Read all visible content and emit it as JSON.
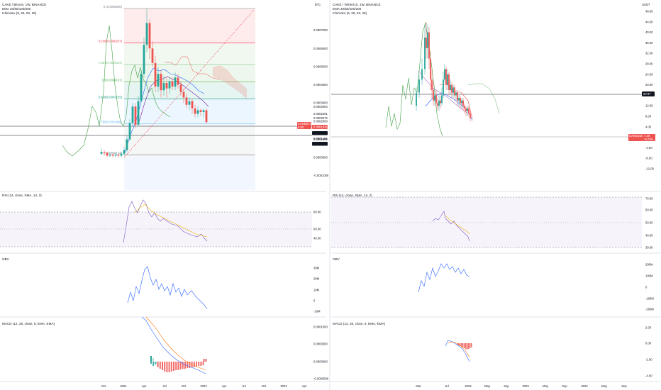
{
  "colors": {
    "up": "#26a69a",
    "down": "#ef5350",
    "ema": "#2962ff",
    "rsi_line": "#7e57c2",
    "rsi_ma": "#f0b400",
    "obv": "#2962ff",
    "macd": "#2962ff",
    "signal": "#ff6d00",
    "ichimoku_lag": "#43a047",
    "grid": "#e0e3eb"
  },
  "left": {
    "title": "CAKE / Bitcoin, 1W, BINANCE",
    "line2": "EMA 20/50/100/200",
    "line3": "Ichimoku (9, 26, 52, 26)",
    "currency": "BTC",
    "price_ticks": [
      "0.0007000",
      "0.0006000",
      "0.0005000",
      "0.0004000",
      "0.0003000",
      "0.0002000",
      "0.0001000",
      "0.0000000",
      "-0.0001000"
    ],
    "price_tick_values": [
      0.0007,
      0.0006,
      0.0005,
      0.0004,
      0.0003,
      0.0002,
      0.0001,
      0.0,
      -0.0001
    ],
    "fib": [
      {
        "label": "0 (0.0008200)",
        "value": 0.00082,
        "color": "#787b86"
      },
      {
        "label": "0.236(0.0006297)",
        "value": 0.0006297,
        "color": "#f23645"
      },
      {
        "label": "0.382(0.0005119)",
        "value": 0.0005119,
        "color": "#81c784"
      },
      {
        "label": "0.5(0.0004167)",
        "value": 0.0004167,
        "color": "#4caf50"
      },
      {
        "label": "0.618(0.0003215)",
        "value": 0.0003215,
        "color": "#089981"
      },
      {
        "label": "0.786(0.0001860)",
        "value": 0.000186,
        "color": "#64b5f6"
      },
      {
        "label": "1 (0.0000134)",
        "value": 1.34e-05,
        "color": "#787b86"
      }
    ],
    "price_labels": [
      "0.0002904",
      "0.0002291",
      "0.0002072",
      "0.0001767",
      "0.0001164",
      "0.0001091"
    ],
    "current_tag": "CAKEBTC",
    "current_value": "0.0001936",
    "current_tag2": "0.00",
    "rsi_title": "RSI (14, close, SMA, 14, 2)",
    "rsi_ticks": [
      "80.00",
      "60.00",
      "40.00"
    ],
    "obv_title": "OBV",
    "obv_ticks": [
      "30M",
      "20M",
      "10M",
      "0",
      "-10M"
    ],
    "macd_title": "MACD (12, 26, close, 9, EMA, EMA)",
    "macd_ticks": [
      "0.0001000",
      "0.0000500",
      "0.0000000",
      "-0.0000500"
    ],
    "time_labels": [
      "Oct",
      "2021",
      "Apr",
      "Jul",
      "Oct",
      "2022",
      "Apr",
      "Jul",
      "Oct",
      "2023",
      "Apr"
    ]
  },
  "right": {
    "title": "CAKE / TetherUS, 1W, BINANCE",
    "line2": "EMA 20/50/100/200",
    "line3": "Ichimoku (9, 26, 52, 26)",
    "currency": "USDT",
    "price_ticks": [
      "48.00",
      "44.00",
      "40.00",
      "36.00",
      "32.00",
      "28.00",
      "24.00",
      "20.00",
      "16.00",
      "12.00",
      "8.00",
      "4.00",
      "0.00",
      "-4.00",
      "-8.00",
      "-12.00"
    ],
    "price_tick_values": [
      48,
      44,
      40,
      36,
      32,
      28,
      24,
      20,
      16,
      12,
      8,
      4,
      0,
      -4,
      -8,
      -12
    ],
    "hline_tag": "20.97",
    "current_tag": "CAKEUSDT",
    "current_value": "7.29",
    "current_tag2": "-8.73%",
    "rsi_title": "RSI (14, close, SMA, 14, 2)",
    "rsi_ticks": [
      "70.00",
      "60.00",
      "50.00",
      "40.00",
      "30.00"
    ],
    "obv_title": "OBV",
    "obv_ticks": [
      "200M",
      "100M",
      "0",
      "-100M",
      "-200M"
    ],
    "macd_title": "MACD (12, 26, close, 9, EMA, EMA)",
    "macd_ticks": [
      "2.00",
      "0.00",
      "-2.00",
      "-4.00"
    ],
    "time_labels": [
      "Mar",
      "Jul",
      "2022",
      "May",
      "Sep",
      "2023",
      "May",
      "Sep",
      "2024",
      "May",
      "Sep"
    ]
  },
  "chart_data": [
    {
      "type": "line",
      "title": "CAKE / Bitcoin, 1W, BINANCE",
      "ylabel": "BTC",
      "ylim": [
        -0.00012,
        0.00083
      ],
      "series": [
        {
          "values": [
            2e-05,
            3e-05,
            0.0001,
            0.00019,
            0.00027,
            0.0003,
            0.00046,
            0.00074,
            0.00069,
            0.0006,
            0.00039,
            0.00046,
            0.00037,
            0.00041,
            0.00038,
            0.00036,
            0.00029,
            0.00026,
            0.00022,
            0.00024,
            0.00021,
            0.00019
          ]
        }
      ]
    },
    {
      "type": "line",
      "title": "CAKE / TetherUS, 1W, BINANCE",
      "ylabel": "USDT",
      "ylim": [
        -12,
        48
      ],
      "series": [
        {
          "values": [
            12,
            17,
            21,
            25,
            34,
            40,
            43,
            30,
            22,
            16,
            12,
            14,
            26,
            20,
            17,
            14,
            12,
            10,
            8,
            7.29
          ]
        }
      ]
    }
  ]
}
